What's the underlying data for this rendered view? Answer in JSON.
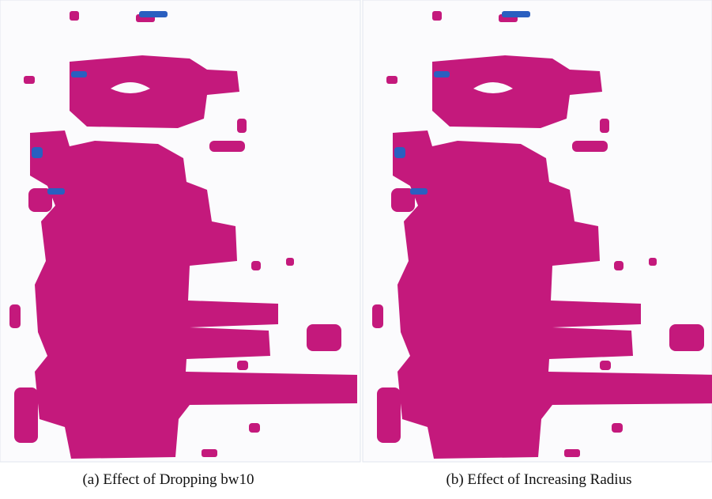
{
  "figure": {
    "subfigures": [
      {
        "caption": "(a) Effect of Dropping bw10"
      },
      {
        "caption": "(b) Effect of Increasing Radius"
      }
    ]
  }
}
